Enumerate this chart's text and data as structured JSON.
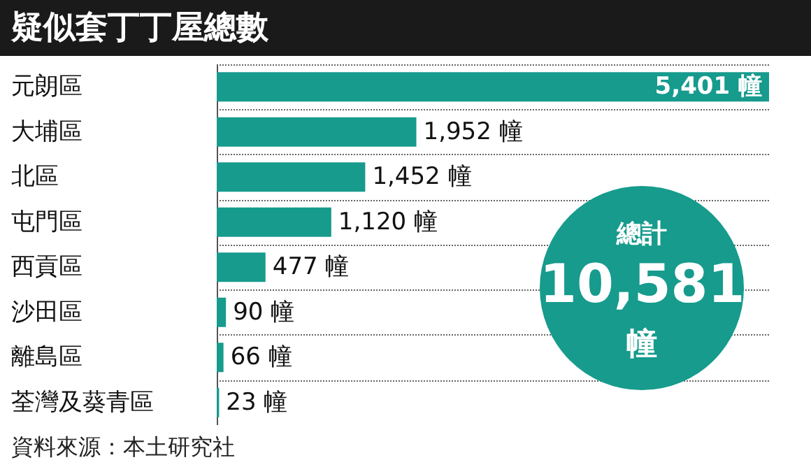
{
  "chart_data": {
    "type": "bar",
    "orientation": "horizontal",
    "title": "疑似套丁丁屋總數",
    "categories": [
      "元朗區",
      "大埔區",
      "北區",
      "屯門區",
      "西貢區",
      "沙田區",
      "離島區",
      "荃灣及葵青區"
    ],
    "values": [
      5401,
      1952,
      1452,
      1120,
      477,
      90,
      66,
      23
    ],
    "value_labels": [
      "5,401 幢",
      "1,952 幢",
      "1,452 幢",
      "1,120 幢",
      "477 幢",
      "90 幢",
      "66 幢",
      "23 幢"
    ],
    "color": "#169b8d",
    "grid": "y",
    "tick_labels": "y",
    "annotations": [
      "總計",
      "10,581",
      "幢",
      "資料來源：本土研究社"
    ]
  }
}
